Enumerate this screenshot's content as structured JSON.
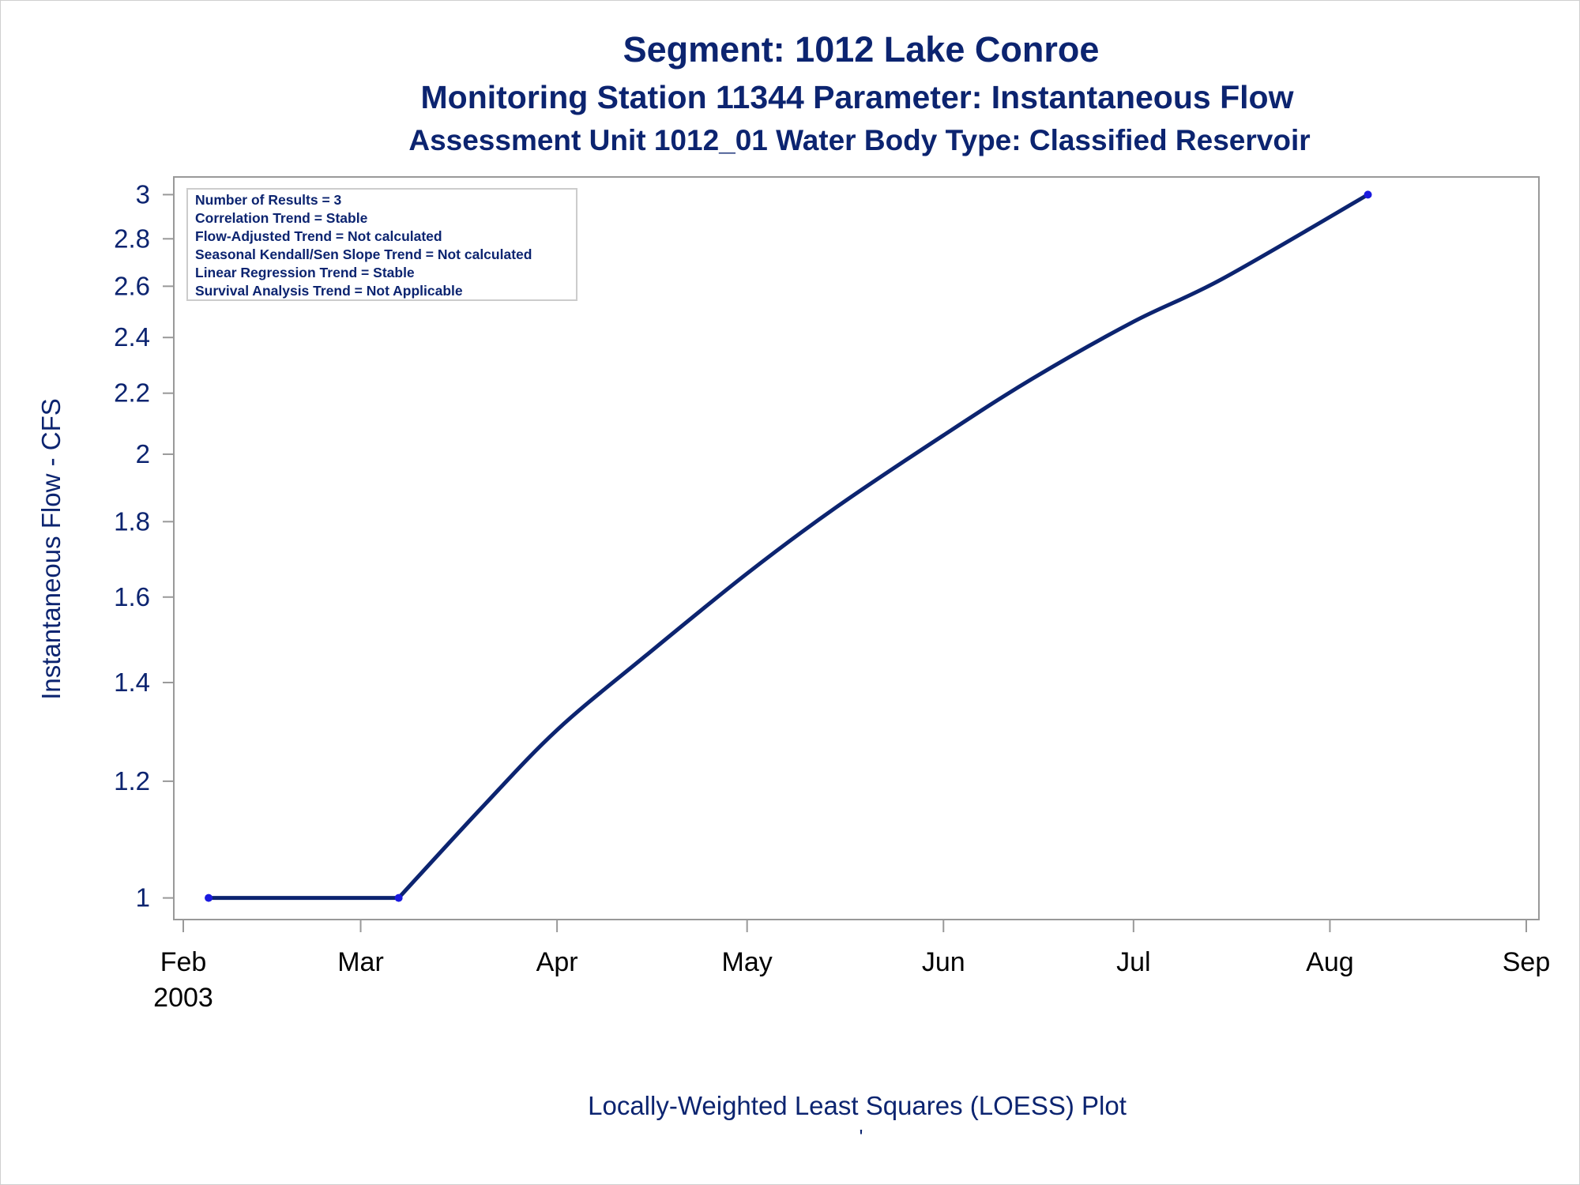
{
  "chart_data": {
    "type": "line",
    "title": "Segment: 1012  Lake Conroe",
    "subtitle": "Monitoring Station 11344 Parameter: Instantaneous Flow",
    "subtitle2": "Assessment Unit 1012_01   Water Body Type: Classified Reservoir",
    "ylabel": "Instantaneous Flow - CFS",
    "xlabel": "",
    "footnote": "Locally-Weighted Least Squares (LOESS) Plot",
    "footnote_mark": "'",
    "x_ticks": [
      "Feb",
      "Mar",
      "Apr",
      "May",
      "Jun",
      "Jul",
      "Aug",
      "Sep"
    ],
    "x_year_label": "2003",
    "y_ticks": [
      "1",
      "1.2",
      "1.4",
      "1.6",
      "1.8",
      "2",
      "2.2",
      "2.4",
      "2.6",
      "2.8",
      "3"
    ],
    "y_scale": "log",
    "ylim": [
      0.98,
      3.02
    ],
    "xlim": [
      "2003-02-01",
      "2003-09-01"
    ],
    "series": [
      {
        "type": "line",
        "x": [
          "2003-02-05",
          "2003-03-07",
          "2003-03-20",
          "2003-04-01",
          "2003-04-15",
          "2003-05-01",
          "2003-05-15",
          "2003-06-01",
          "2003-06-15",
          "2003-07-01",
          "2003-07-15",
          "2003-08-07"
        ],
        "y": [
          1.0,
          1.0,
          1.15,
          1.3,
          1.46,
          1.66,
          1.84,
          2.06,
          2.25,
          2.46,
          2.63,
          3.0
        ]
      },
      {
        "type": "scatter",
        "x": [
          "2003-02-05",
          "2003-03-07",
          "2003-08-07"
        ],
        "y": [
          1.0,
          1.0,
          3.0
        ]
      }
    ],
    "stats_box": [
      "Number of Results = 3",
      "Correlation Trend = Stable",
      "Flow-Adjusted Trend = Not calculated",
      "Seasonal Kendall/Sen Slope Trend = Not calculated",
      "Linear Regression Trend = Stable",
      "Survival Analysis Trend = Not Applicable"
    ],
    "colors": {
      "line": "#0c2470",
      "marker": "#1a1adf",
      "text": "#0c2470",
      "axis": "#999999"
    },
    "grid": false
  }
}
